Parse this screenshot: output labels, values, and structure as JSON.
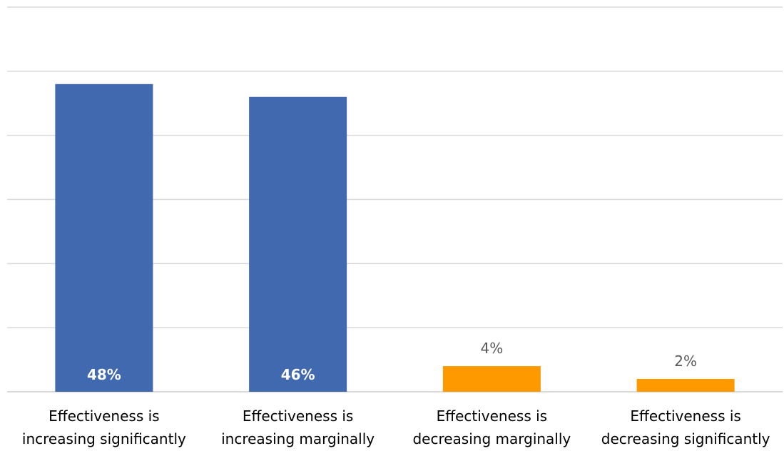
{
  "chart_data": {
    "type": "bar",
    "categories": [
      [
        "Effectiveness is",
        "increasing significantly"
      ],
      [
        "Effectiveness is",
        "increasing marginally"
      ],
      [
        "Effectiveness is",
        "decreasing marginally"
      ],
      [
        "Effectiveness is",
        "decreasing significantly"
      ]
    ],
    "values": [
      48,
      46,
      4,
      2
    ],
    "value_labels": [
      "48%",
      "46%",
      "4%",
      "2%"
    ],
    "label_positions": [
      "inside-bottom",
      "inside-bottom",
      "outside-top",
      "outside-top"
    ],
    "bar_colors": [
      "#4169b0",
      "#4169b0",
      "#ff9900",
      "#ff9900"
    ],
    "ylim": [
      0,
      60
    ],
    "y_gridlines": [
      0,
      10,
      20,
      30,
      40,
      50,
      60
    ],
    "grid": true,
    "y_tick_labels_shown": false,
    "title": "",
    "xlabel": "",
    "ylabel": "",
    "legend": "none"
  }
}
